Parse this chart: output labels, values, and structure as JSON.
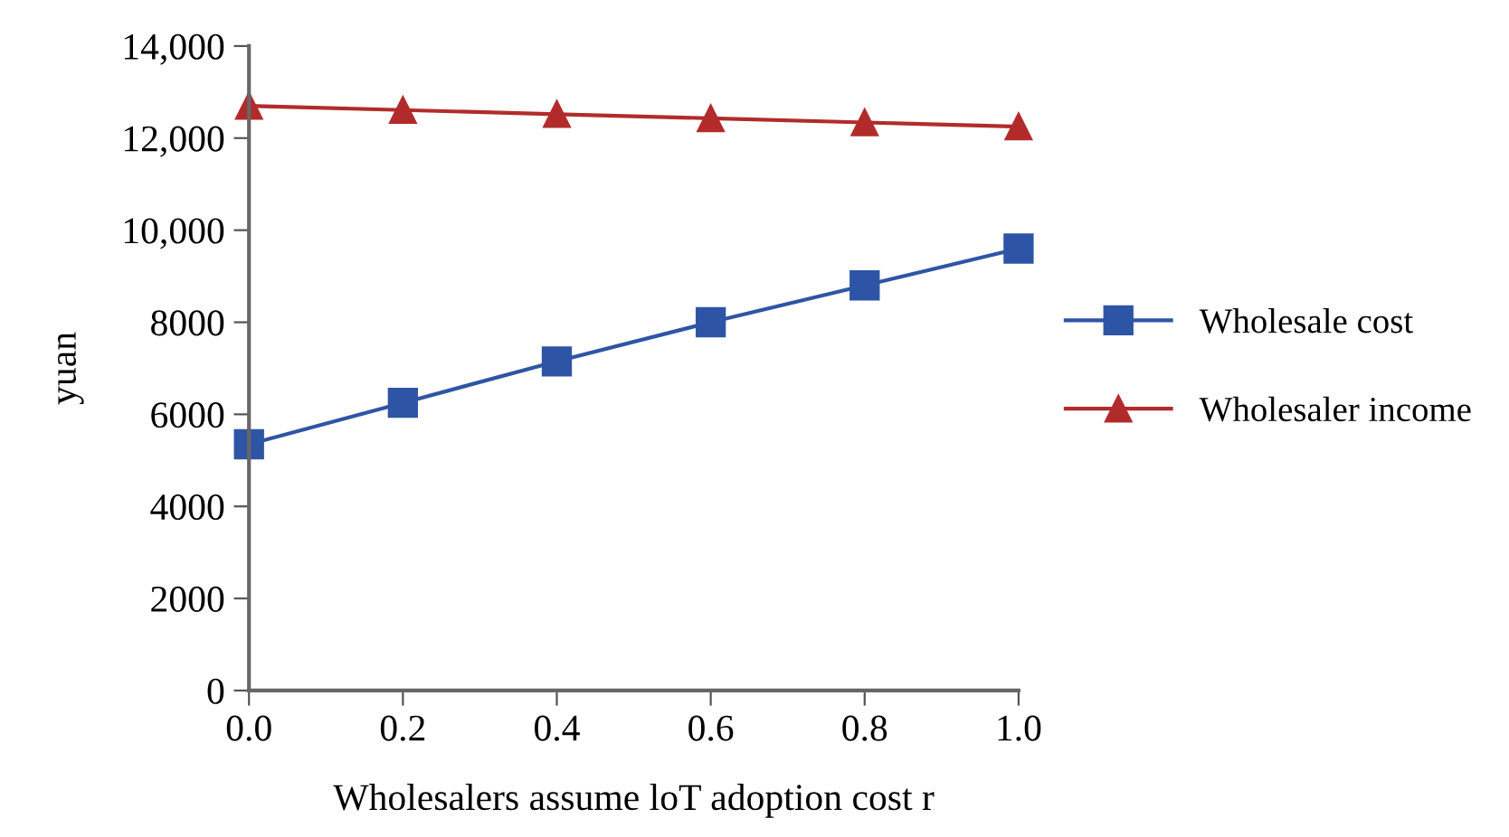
{
  "chart_data": {
    "type": "line",
    "xlabel": "Wholesalers assume loT adoption cost r",
    "ylabel": "yuan",
    "x": [
      0.0,
      0.2,
      0.4,
      0.6,
      0.8,
      1.0
    ],
    "series": [
      {
        "name": "Wholesale cost",
        "color": "#2e55a5",
        "marker": "square",
        "values": [
          5350,
          6250,
          7150,
          8000,
          8800,
          9600
        ]
      },
      {
        "name": "Wholesaler income",
        "color": "#b22b2b",
        "marker": "triangle",
        "values": [
          12700,
          12610,
          12520,
          12430,
          12340,
          12250
        ]
      }
    ],
    "xlim": [
      0,
      1
    ],
    "xticks": [
      {
        "value": 0,
        "label": "0.0"
      },
      {
        "value": 0.2,
        "label": "0.2"
      },
      {
        "value": 0.4,
        "label": "0.4"
      },
      {
        "value": 0.6,
        "label": "0.6"
      },
      {
        "value": 0.8,
        "label": "0.8"
      },
      {
        "value": 1,
        "label": "1.0"
      }
    ],
    "ylim": [
      0,
      14000
    ],
    "yticks": [
      0,
      2000,
      4000,
      6000,
      8000,
      {
        "value": 10000,
        "label": "10,000"
      },
      {
        "value": 12000,
        "label": "12,000"
      },
      {
        "value": 14000,
        "label": "14,000"
      }
    ],
    "grid": false,
    "legend": "right",
    "line_style": "solid"
  }
}
